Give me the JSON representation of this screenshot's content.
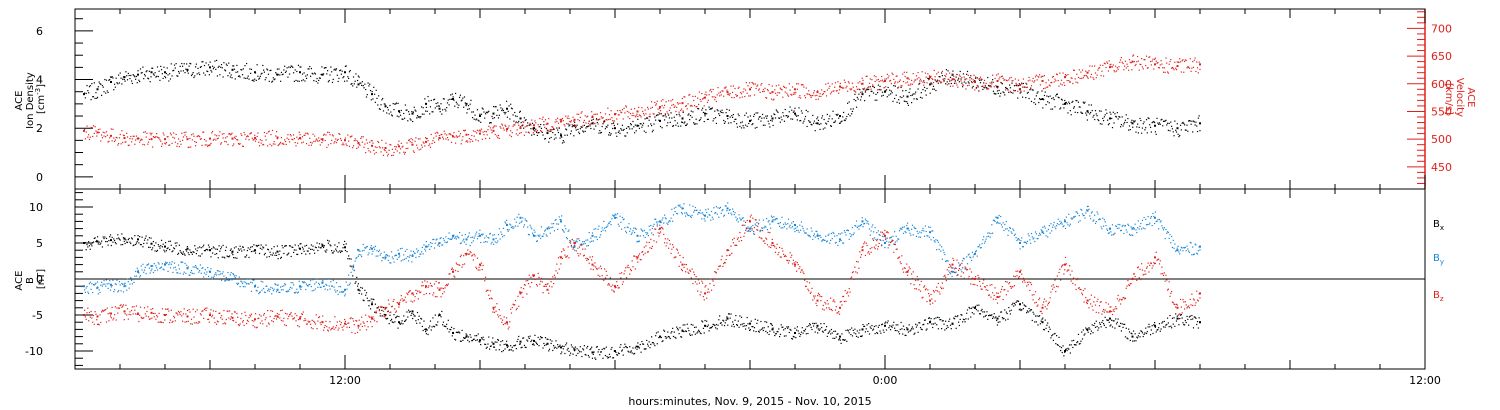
{
  "chart_data": [
    {
      "type": "scatter",
      "panel": "density-velocity",
      "ylabel_lines": [
        "ACE",
        "Ion Density"
      ],
      "ylabel_unit": "[cm",
      "ylabel_unit_sup": "-3",
      "ylabel_unit_end": "]",
      "y2label_lines": [
        "ACE",
        "Velocity",
        "[km/s]"
      ],
      "x_range_hours": [
        6.0,
        36.0
      ],
      "ylim": [
        -0.5,
        6.9
      ],
      "y2lim": [
        410,
        735
      ],
      "yticks": [
        0,
        2,
        4,
        6
      ],
      "y2ticks": [
        450,
        500,
        550,
        600,
        650,
        700
      ],
      "colors": {
        "density": "#000000",
        "velocity": "#e0201b"
      },
      "series": [
        {
          "key": "density",
          "axis": "left",
          "x": [
            6.2,
            6.5,
            6.8,
            7.1,
            7.4,
            7.7,
            8.0,
            8.5,
            9.0,
            9.5,
            10.0,
            10.5,
            11.0,
            11.5,
            12.0,
            12.3,
            12.6,
            12.9,
            13.2,
            13.5,
            13.8,
            14.1,
            14.4,
            14.7,
            15.0,
            15.3,
            15.6,
            15.9,
            16.2,
            16.5,
            16.8,
            17.1,
            17.5,
            18.0,
            18.5,
            19.0,
            19.5,
            20.0,
            20.5,
            21.0,
            21.5,
            22.0,
            22.5,
            23.0,
            23.5,
            24.0,
            24.5,
            25.0,
            25.5,
            26.0,
            26.5,
            27.0,
            27.5,
            28.0,
            28.5,
            29.0,
            29.5,
            30.0,
            30.5,
            31.0
          ],
          "y": [
            3.4,
            3.6,
            3.9,
            4.1,
            4.2,
            4.3,
            4.3,
            4.4,
            4.5,
            4.4,
            4.3,
            4.2,
            4.3,
            4.2,
            4.3,
            3.8,
            3.4,
            2.9,
            2.7,
            2.6,
            3.0,
            2.8,
            3.2,
            3.0,
            2.5,
            2.6,
            2.8,
            2.4,
            2.0,
            1.8,
            1.7,
            2.1,
            2.2,
            2.0,
            2.1,
            2.3,
            2.4,
            2.6,
            2.5,
            2.3,
            2.4,
            2.6,
            2.2,
            2.5,
            3.4,
            3.5,
            3.3,
            3.8,
            4.2,
            3.9,
            3.7,
            3.6,
            3.2,
            3.0,
            2.7,
            2.4,
            2.2,
            2.1,
            2.0,
            2.2
          ]
        },
        {
          "key": "velocity",
          "axis": "right",
          "x": [
            6.2,
            6.5,
            6.8,
            7.1,
            7.4,
            7.7,
            8.0,
            8.5,
            9.0,
            9.5,
            10.0,
            10.5,
            11.0,
            11.5,
            12.0,
            12.3,
            12.6,
            12.9,
            13.2,
            13.5,
            13.8,
            14.1,
            14.4,
            14.7,
            15.0,
            15.3,
            15.6,
            15.9,
            16.2,
            16.5,
            16.8,
            17.1,
            17.5,
            18.0,
            18.5,
            19.0,
            19.5,
            20.0,
            20.5,
            21.0,
            21.5,
            22.0,
            22.5,
            23.0,
            23.5,
            24.0,
            24.5,
            25.0,
            25.5,
            26.0,
            26.5,
            27.0,
            27.5,
            28.0,
            28.5,
            29.0,
            29.5,
            30.0,
            30.5,
            31.0
          ],
          "y": [
            515,
            512,
            506,
            502,
            501,
            500,
            500,
            500,
            501,
            501,
            502,
            503,
            502,
            500,
            498,
            493,
            488,
            484,
            487,
            490,
            495,
            502,
            505,
            508,
            510,
            515,
            518,
            520,
            525,
            528,
            532,
            535,
            540,
            545,
            550,
            558,
            565,
            575,
            585,
            590,
            585,
            590,
            585,
            595,
            600,
            605,
            610,
            612,
            608,
            603,
            605,
            598,
            605,
            612,
            620,
            630,
            640,
            635,
            632,
            635
          ]
        }
      ]
    },
    {
      "type": "scatter",
      "panel": "magnetic-field",
      "ylabel_lines": [
        "ACE",
        "B",
        "[nT]"
      ],
      "x_range_hours": [
        6.0,
        36.0
      ],
      "ylim": [
        -12.5,
        12.5
      ],
      "yticks": [
        -10,
        -5,
        0,
        5,
        10
      ],
      "zero_line": true,
      "xticks": [
        "12:00",
        "0:00",
        "12:00"
      ],
      "xtick_hours": [
        12.0,
        24.0,
        36.0
      ],
      "xlabel": "hours:minutes, Nov.  9, 2015 - Nov. 10, 2015",
      "colors": {
        "Bx": "#000000",
        "By": "#1a86d6",
        "Bz": "#e0201b"
      },
      "series": [
        {
          "name": "B",
          "subscript": "x",
          "key": "Bx",
          "x": [
            6.2,
            6.5,
            6.8,
            7.1,
            7.4,
            7.7,
            8.0,
            8.5,
            9.0,
            9.5,
            10.0,
            10.5,
            11.0,
            11.5,
            12.0,
            12.3,
            12.6,
            12.9,
            13.2,
            13.5,
            13.8,
            14.1,
            14.4,
            14.7,
            15.0,
            15.3,
            15.6,
            15.9,
            16.2,
            16.5,
            16.8,
            17.1,
            17.5,
            18.0,
            18.5,
            19.0,
            19.5,
            20.0,
            20.5,
            21.0,
            21.5,
            22.0,
            22.5,
            23.0,
            23.5,
            24.0,
            24.5,
            25.0,
            25.5,
            26.0,
            26.5,
            27.0,
            27.5,
            28.0,
            28.5,
            29.0,
            29.5,
            30.0,
            30.5,
            31.0
          ],
          "y": [
            5,
            5.2,
            5.4,
            5.6,
            5.5,
            4.9,
            4.5,
            4.2,
            4,
            3.8,
            4,
            3.8,
            4.2,
            4.6,
            4.4,
            -1.5,
            -3.5,
            -5,
            -6,
            -4.5,
            -7,
            -5,
            -7.5,
            -8,
            -8.5,
            -9,
            -9.2,
            -8.7,
            -8.6,
            -9,
            -9.5,
            -9.8,
            -10.2,
            -10,
            -9.4,
            -8,
            -7.2,
            -6.5,
            -5.5,
            -6.2,
            -7,
            -7.5,
            -6.5,
            -8,
            -7,
            -6.5,
            -7,
            -6,
            -6.2,
            -4,
            -5.5,
            -3.5,
            -6,
            -10,
            -7,
            -5.5,
            -8,
            -6.5,
            -5.5,
            -6
          ]
        },
        {
          "name": "B",
          "subscript": "y",
          "key": "By",
          "x": [
            6.2,
            6.5,
            6.8,
            7.1,
            7.4,
            7.7,
            8.0,
            8.5,
            9.0,
            9.5,
            10.0,
            10.5,
            11.0,
            11.5,
            12.0,
            12.3,
            12.6,
            12.9,
            13.2,
            13.5,
            13.8,
            14.1,
            14.4,
            14.7,
            15.0,
            15.3,
            15.6,
            15.9,
            16.2,
            16.5,
            16.8,
            17.1,
            17.5,
            18.0,
            18.5,
            19.0,
            19.5,
            20.0,
            20.5,
            21.0,
            21.5,
            22.0,
            22.5,
            23.0,
            23.5,
            24.0,
            24.5,
            25.0,
            25.5,
            26.0,
            26.5,
            27.0,
            27.5,
            28.0,
            28.5,
            29.0,
            29.5,
            30.0,
            30.5,
            31.0
          ],
          "y": [
            -1,
            -1.2,
            -0.8,
            -1,
            1,
            1.8,
            2,
            1.5,
            1,
            0,
            -1,
            -1.5,
            -1,
            -0.5,
            -1.5,
            4,
            4.2,
            3,
            3.5,
            3.2,
            4.5,
            5,
            6,
            5.5,
            6,
            5.5,
            7.5,
            8.5,
            6,
            7,
            8,
            4.5,
            6,
            8.5,
            6,
            8,
            9.8,
            8.8,
            9.8,
            7,
            8,
            7.5,
            6,
            5.5,
            8,
            5,
            7,
            6.5,
            1,
            3.5,
            8.5,
            5,
            6.5,
            8,
            9.5,
            7,
            7,
            8.5,
            4,
            4.5
          ]
        },
        {
          "name": "B",
          "subscript": "z",
          "key": "Bz",
          "x": [
            6.2,
            6.5,
            6.8,
            7.1,
            7.4,
            7.7,
            8.0,
            8.5,
            9.0,
            9.5,
            10.0,
            10.5,
            11.0,
            11.5,
            12.0,
            12.3,
            12.6,
            12.9,
            13.2,
            13.5,
            13.8,
            14.1,
            14.4,
            14.7,
            15.0,
            15.3,
            15.6,
            15.9,
            16.2,
            16.5,
            16.8,
            17.1,
            17.5,
            18.0,
            18.5,
            19.0,
            19.5,
            20.0,
            20.5,
            21.0,
            21.5,
            22.0,
            22.5,
            23.0,
            23.5,
            24.0,
            24.5,
            25.0,
            25.5,
            26.0,
            26.5,
            27.0,
            27.5,
            28.0,
            28.5,
            29.0,
            29.5,
            30.0,
            30.5,
            31.0
          ],
          "y": [
            -5,
            -5.2,
            -4.8,
            -4.5,
            -4.8,
            -4.7,
            -5,
            -5.2,
            -5,
            -5.4,
            -5.6,
            -5.2,
            -5.5,
            -6,
            -6.2,
            -6.5,
            -5.5,
            -4,
            -3.5,
            -2,
            -1,
            -1.5,
            1,
            3.5,
            2,
            -4,
            -6,
            -2,
            0.5,
            -1.5,
            3,
            5,
            2,
            -1,
            3,
            7,
            2,
            -2,
            4,
            8,
            5,
            2,
            -3,
            -4,
            4,
            6,
            1,
            -3,
            2,
            0,
            -2.5,
            1,
            -4,
            2,
            -3,
            -4.5,
            0,
            3,
            -4,
            -2
          ]
        }
      ]
    }
  ]
}
